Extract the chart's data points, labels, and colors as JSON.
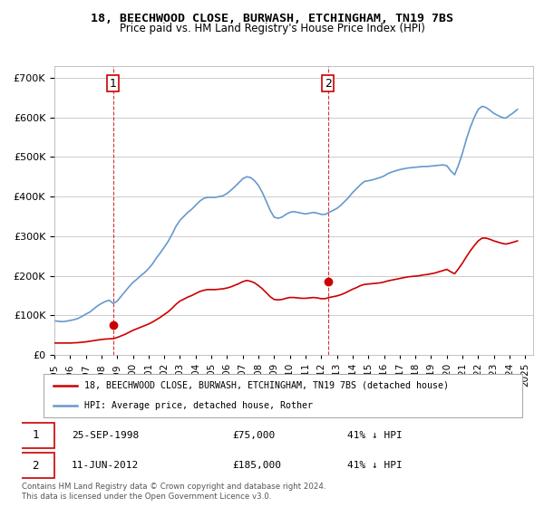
{
  "title": "18, BEECHWOOD CLOSE, BURWASH, ETCHINGHAM, TN19 7BS",
  "subtitle": "Price paid vs. HM Land Registry's House Price Index (HPI)",
  "legend_label_red": "18, BEECHWOOD CLOSE, BURWASH, ETCHINGHAM, TN19 7BS (detached house)",
  "legend_label_blue": "HPI: Average price, detached house, Rother",
  "footer": "Contains HM Land Registry data © Crown copyright and database right 2024.\nThis data is licensed under the Open Government Licence v3.0.",
  "sale1_label": "1",
  "sale1_date": "25-SEP-1998",
  "sale1_price": "£75,000",
  "sale1_hpi": "41% ↓ HPI",
  "sale2_label": "2",
  "sale2_date": "11-JUN-2012",
  "sale2_price": "£185,000",
  "sale2_hpi": "41% ↓ HPI",
  "ylim": [
    0,
    730000
  ],
  "xlim_start": 1995.0,
  "xlim_end": 2025.5,
  "sale1_x": 1998.73,
  "sale1_y": 75000,
  "sale2_x": 2012.44,
  "sale2_y": 185000,
  "red_color": "#cc0000",
  "blue_color": "#6699cc",
  "dashed_color": "#cc0000",
  "marker1_color": "#cc0000",
  "marker2_color": "#cc0000",
  "background_color": "#ffffff",
  "grid_color": "#cccccc",
  "hpi_x": [
    1995.0,
    1995.25,
    1995.5,
    1995.75,
    1996.0,
    1996.25,
    1996.5,
    1996.75,
    1997.0,
    1997.25,
    1997.5,
    1997.75,
    1998.0,
    1998.25,
    1998.5,
    1998.75,
    1999.0,
    1999.25,
    1999.5,
    1999.75,
    2000.0,
    2000.25,
    2000.5,
    2000.75,
    2001.0,
    2001.25,
    2001.5,
    2001.75,
    2002.0,
    2002.25,
    2002.5,
    2002.75,
    2003.0,
    2003.25,
    2003.5,
    2003.75,
    2004.0,
    2004.25,
    2004.5,
    2004.75,
    2005.0,
    2005.25,
    2005.5,
    2005.75,
    2006.0,
    2006.25,
    2006.5,
    2006.75,
    2007.0,
    2007.25,
    2007.5,
    2007.75,
    2008.0,
    2008.25,
    2008.5,
    2008.75,
    2009.0,
    2009.25,
    2009.5,
    2009.75,
    2010.0,
    2010.25,
    2010.5,
    2010.75,
    2011.0,
    2011.25,
    2011.5,
    2011.75,
    2012.0,
    2012.25,
    2012.5,
    2012.75,
    2013.0,
    2013.25,
    2013.5,
    2013.75,
    2014.0,
    2014.25,
    2014.5,
    2014.75,
    2015.0,
    2015.25,
    2015.5,
    2015.75,
    2016.0,
    2016.25,
    2016.5,
    2016.75,
    2017.0,
    2017.25,
    2017.5,
    2017.75,
    2018.0,
    2018.25,
    2018.5,
    2018.75,
    2019.0,
    2019.25,
    2019.5,
    2019.75,
    2020.0,
    2020.25,
    2020.5,
    2020.75,
    2021.0,
    2021.25,
    2021.5,
    2021.75,
    2022.0,
    2022.25,
    2022.5,
    2022.75,
    2023.0,
    2023.25,
    2023.5,
    2023.75,
    2024.0,
    2024.25,
    2024.5
  ],
  "hpi_y": [
    86000,
    85000,
    84000,
    85000,
    87000,
    89000,
    92000,
    97000,
    103000,
    108000,
    116000,
    124000,
    130000,
    135000,
    138000,
    130000,
    136000,
    148000,
    160000,
    172000,
    183000,
    191000,
    200000,
    208000,
    218000,
    230000,
    245000,
    258000,
    272000,
    287000,
    305000,
    325000,
    340000,
    350000,
    360000,
    368000,
    378000,
    388000,
    395000,
    398000,
    398000,
    398000,
    400000,
    402000,
    408000,
    416000,
    425000,
    435000,
    445000,
    450000,
    448000,
    440000,
    428000,
    410000,
    388000,
    365000,
    348000,
    345000,
    348000,
    355000,
    360000,
    362000,
    360000,
    358000,
    356000,
    358000,
    360000,
    358000,
    355000,
    355000,
    360000,
    365000,
    370000,
    378000,
    388000,
    398000,
    410000,
    420000,
    430000,
    438000,
    440000,
    442000,
    445000,
    448000,
    452000,
    458000,
    462000,
    465000,
    468000,
    470000,
    472000,
    473000,
    474000,
    475000,
    476000,
    476000,
    477000,
    478000,
    479000,
    480000,
    478000,
    465000,
    455000,
    480000,
    510000,
    545000,
    575000,
    600000,
    620000,
    628000,
    625000,
    618000,
    610000,
    605000,
    600000,
    598000,
    605000,
    612000,
    620000
  ],
  "red_x": [
    1995.0,
    1995.25,
    1995.5,
    1995.75,
    1996.0,
    1996.25,
    1996.5,
    1996.75,
    1997.0,
    1997.25,
    1997.5,
    1997.75,
    1998.0,
    1998.25,
    1998.5,
    1998.75,
    1999.0,
    1999.25,
    1999.5,
    1999.75,
    2000.0,
    2000.25,
    2000.5,
    2000.75,
    2001.0,
    2001.25,
    2001.5,
    2001.75,
    2002.0,
    2002.25,
    2002.5,
    2002.75,
    2003.0,
    2003.25,
    2003.5,
    2003.75,
    2004.0,
    2004.25,
    2004.5,
    2004.75,
    2005.0,
    2005.25,
    2005.5,
    2005.75,
    2006.0,
    2006.25,
    2006.5,
    2006.75,
    2007.0,
    2007.25,
    2007.5,
    2007.75,
    2008.0,
    2008.25,
    2008.5,
    2008.75,
    2009.0,
    2009.25,
    2009.5,
    2009.75,
    2010.0,
    2010.25,
    2010.5,
    2010.75,
    2011.0,
    2011.25,
    2011.5,
    2011.75,
    2012.0,
    2012.25,
    2012.5,
    2012.75,
    2013.0,
    2013.25,
    2013.5,
    2013.75,
    2014.0,
    2014.25,
    2014.5,
    2014.75,
    2015.0,
    2015.25,
    2015.5,
    2015.75,
    2016.0,
    2016.25,
    2016.5,
    2016.75,
    2017.0,
    2017.25,
    2017.5,
    2017.75,
    2018.0,
    2018.25,
    2018.5,
    2018.75,
    2019.0,
    2019.25,
    2019.5,
    2019.75,
    2020.0,
    2020.25,
    2020.5,
    2020.75,
    2021.0,
    2021.25,
    2021.5,
    2021.75,
    2022.0,
    2022.25,
    2022.5,
    2022.75,
    2023.0,
    2023.25,
    2023.5,
    2023.75,
    2024.0,
    2024.25,
    2024.5
  ],
  "red_y": [
    30000,
    30000,
    30000,
    30000,
    30000,
    30500,
    31000,
    32000,
    33000,
    34500,
    36000,
    37500,
    39000,
    40000,
    40500,
    41000,
    44000,
    48000,
    52000,
    57000,
    62000,
    66000,
    70000,
    74000,
    78000,
    83000,
    89000,
    95000,
    102000,
    109000,
    118000,
    128000,
    136000,
    141000,
    146000,
    150000,
    155000,
    160000,
    163000,
    165000,
    165000,
    165000,
    166000,
    167000,
    169000,
    172000,
    176000,
    180000,
    185000,
    188000,
    186000,
    182000,
    175000,
    167000,
    157000,
    147000,
    140000,
    139000,
    140000,
    143000,
    145000,
    145000,
    144000,
    143000,
    143000,
    144000,
    145000,
    144000,
    142000,
    142000,
    145000,
    147000,
    149000,
    152000,
    156000,
    161000,
    166000,
    170000,
    175000,
    178000,
    179000,
    180000,
    181000,
    182000,
    184000,
    187000,
    189000,
    191000,
    193000,
    195000,
    197000,
    198000,
    199000,
    200000,
    202000,
    203000,
    205000,
    207000,
    210000,
    213000,
    216000,
    210000,
    205000,
    218000,
    232000,
    248000,
    263000,
    276000,
    288000,
    295000,
    295000,
    292000,
    288000,
    285000,
    282000,
    280000,
    282000,
    285000,
    288000
  ],
  "xlabel": "",
  "ylabel": "",
  "xticks": [
    1995,
    1996,
    1997,
    1998,
    1999,
    2000,
    2001,
    2002,
    2003,
    2004,
    2005,
    2006,
    2007,
    2008,
    2009,
    2010,
    2011,
    2012,
    2013,
    2014,
    2015,
    2016,
    2017,
    2018,
    2019,
    2020,
    2021,
    2022,
    2023,
    2024,
    2025
  ],
  "yticks": [
    0,
    100000,
    200000,
    300000,
    400000,
    500000,
    600000,
    700000
  ]
}
